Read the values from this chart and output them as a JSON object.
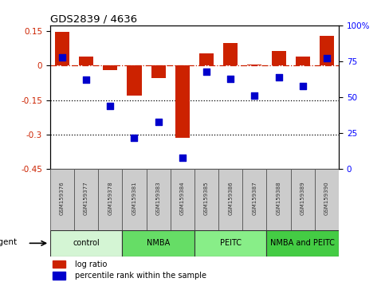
{
  "title": "GDS2839 / 4636",
  "samples": [
    "GSM159376",
    "GSM159377",
    "GSM159378",
    "GSM159381",
    "GSM159383",
    "GSM159384",
    "GSM159385",
    "GSM159386",
    "GSM159387",
    "GSM159388",
    "GSM159389",
    "GSM159390"
  ],
  "log_ratio": [
    0.148,
    0.04,
    -0.02,
    -0.13,
    -0.055,
    -0.315,
    0.055,
    0.1,
    0.005,
    0.065,
    0.04,
    0.13
  ],
  "percentile_rank": [
    78,
    62,
    44,
    22,
    33,
    8,
    68,
    63,
    51,
    64,
    58,
    77
  ],
  "groups": [
    {
      "label": "control",
      "start": 0,
      "end": 3,
      "color": "#d4f5d4"
    },
    {
      "label": "NMBA",
      "start": 3,
      "end": 6,
      "color": "#66dd66"
    },
    {
      "label": "PEITC",
      "start": 6,
      "end": 9,
      "color": "#88ee88"
    },
    {
      "label": "NMBA and PEITC",
      "start": 9,
      "end": 12,
      "color": "#44cc44"
    }
  ],
  "ylim_left": [
    -0.45,
    0.175
  ],
  "ylim_right": [
    0,
    100
  ],
  "yticks_left": [
    0.15,
    0.0,
    -0.15,
    -0.3,
    -0.45
  ],
  "yticks_right": [
    100,
    75,
    50,
    25,
    0
  ],
  "bar_color": "#cc2200",
  "dot_color": "#0000cc",
  "hline_color": "#cc2200",
  "dotted_lines": [
    -0.15,
    -0.3
  ],
  "agent_label": "agent",
  "legend_logratio": "log ratio",
  "legend_percentile": "percentile rank within the sample",
  "bar_width": 0.6,
  "dot_size": 28,
  "sample_box_color": "#cccccc",
  "sample_text_color": "#333333"
}
